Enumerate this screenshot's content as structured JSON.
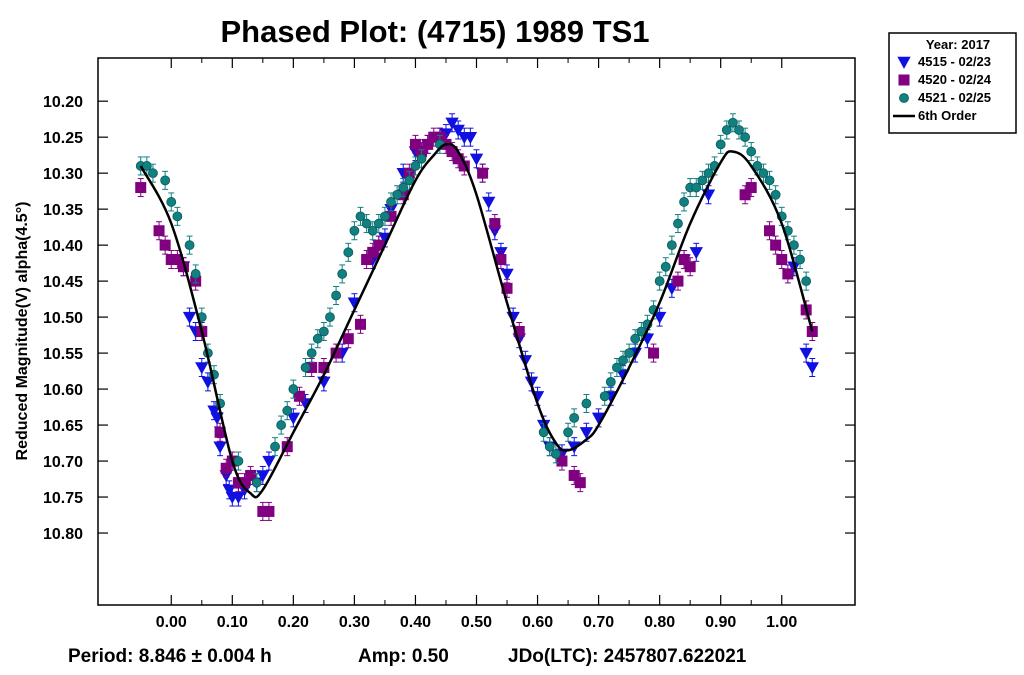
{
  "chart_data": {
    "type": "scatter",
    "title": "Phased Plot: (4715) 1989 TS1",
    "xlabel": "",
    "ylabel": "Reduced Magnitude(V) alpha(4.5°)",
    "xlim": [
      -0.12,
      1.12
    ],
    "ylim": [
      10.14,
      10.9
    ],
    "y_inverted": true,
    "x_ticks": [
      "0.00",
      "0.10",
      "0.20",
      "0.30",
      "0.40",
      "0.50",
      "0.60",
      "0.70",
      "0.80",
      "0.90",
      "1.00"
    ],
    "y_ticks": [
      "10.20",
      "10.25",
      "10.30",
      "10.35",
      "10.40",
      "10.45",
      "10.50",
      "10.55",
      "10.60",
      "10.65",
      "10.70",
      "10.75",
      "10.80"
    ],
    "legend": {
      "placement": "outside-top-right",
      "title": "Year: 2017",
      "entries": [
        {
          "label": "4515 - 02/23",
          "marker": "triangle-down",
          "color": "#1010e0"
        },
        {
          "label": "4520 - 02/24",
          "marker": "square",
          "color": "#800080"
        },
        {
          "label": "4521 - 02/25",
          "marker": "circle",
          "color": "#108080"
        },
        {
          "label": "6th Order",
          "marker": "line",
          "color": "#000000"
        }
      ]
    },
    "fit_curve": {
      "name": "6th Order",
      "x": [
        -0.05,
        0.0,
        0.05,
        0.1,
        0.13,
        0.15,
        0.2,
        0.25,
        0.3,
        0.35,
        0.4,
        0.43,
        0.45,
        0.47,
        0.5,
        0.55,
        0.6,
        0.63,
        0.65,
        0.68,
        0.7,
        0.75,
        0.8,
        0.85,
        0.9,
        0.92,
        0.95,
        1.0,
        1.05
      ],
      "y": [
        10.29,
        10.37,
        10.52,
        10.7,
        10.745,
        10.74,
        10.66,
        10.58,
        10.49,
        10.4,
        10.31,
        10.275,
        10.26,
        10.27,
        10.33,
        10.48,
        10.62,
        10.675,
        10.685,
        10.67,
        10.65,
        10.57,
        10.48,
        10.37,
        10.285,
        10.27,
        10.29,
        10.37,
        10.52
      ]
    },
    "series": [
      {
        "name": "4515 - 02/23",
        "x": [
          0.02,
          0.03,
          0.04,
          0.05,
          0.06,
          0.07,
          0.075,
          0.08,
          0.09,
          0.095,
          0.1,
          0.11,
          0.12,
          0.14,
          0.15,
          0.16,
          0.2,
          0.22,
          0.25,
          0.28,
          0.3,
          0.33,
          0.34,
          0.35,
          0.36,
          0.38,
          0.4,
          0.42,
          0.44,
          0.45,
          0.46,
          0.47,
          0.48,
          0.49,
          0.5,
          0.51,
          0.52,
          0.53,
          0.54,
          0.55,
          0.56,
          0.57,
          0.58,
          0.59,
          0.6,
          0.61,
          0.62,
          0.64,
          0.66,
          0.68,
          0.7,
          0.72,
          0.74,
          0.76,
          0.78,
          0.8,
          0.82,
          0.84,
          0.86,
          0.88,
          1.02,
          1.04,
          1.05
        ],
        "y": [
          10.43,
          10.5,
          10.52,
          10.57,
          10.59,
          10.63,
          10.64,
          10.68,
          10.72,
          10.74,
          10.75,
          10.75,
          10.74,
          10.73,
          10.72,
          10.7,
          10.64,
          10.62,
          10.59,
          10.55,
          10.48,
          10.42,
          10.4,
          10.39,
          10.35,
          10.3,
          10.27,
          10.26,
          10.25,
          10.245,
          10.23,
          10.24,
          10.25,
          10.25,
          10.28,
          10.3,
          10.34,
          10.38,
          10.41,
          10.44,
          10.5,
          10.53,
          10.56,
          10.59,
          10.61,
          10.65,
          10.68,
          10.69,
          10.68,
          10.66,
          10.64,
          10.61,
          10.58,
          10.55,
          10.53,
          10.5,
          10.46,
          10.42,
          10.41,
          10.33,
          10.43,
          10.55,
          10.57
        ]
      },
      {
        "name": "4520 - 02/24",
        "x": [
          -0.05,
          -0.02,
          -0.01,
          0.0,
          0.01,
          0.02,
          0.04,
          0.05,
          0.08,
          0.09,
          0.1,
          0.11,
          0.12,
          0.13,
          0.15,
          0.16,
          0.19,
          0.21,
          0.23,
          0.25,
          0.27,
          0.29,
          0.31,
          0.32,
          0.33,
          0.34,
          0.36,
          0.38,
          0.39,
          0.4,
          0.41,
          0.42,
          0.43,
          0.44,
          0.45,
          0.46,
          0.47,
          0.48,
          0.51,
          0.53,
          0.54,
          0.55,
          0.57,
          0.64,
          0.66,
          0.67,
          0.79,
          0.83,
          0.84,
          0.85,
          0.94,
          0.95,
          0.98,
          0.99,
          1.0,
          1.01,
          1.04,
          1.05
        ],
        "y": [
          10.32,
          10.38,
          10.4,
          10.42,
          10.42,
          10.43,
          10.45,
          10.52,
          10.66,
          10.71,
          10.7,
          10.73,
          10.73,
          10.72,
          10.77,
          10.77,
          10.68,
          10.61,
          10.57,
          10.57,
          10.55,
          10.53,
          10.51,
          10.42,
          10.41,
          10.4,
          10.36,
          10.33,
          10.3,
          10.26,
          10.27,
          10.26,
          10.25,
          10.25,
          10.26,
          10.27,
          10.28,
          10.29,
          10.3,
          10.37,
          10.42,
          10.46,
          10.52,
          10.7,
          10.72,
          10.73,
          10.55,
          10.45,
          10.42,
          10.43,
          10.33,
          10.32,
          10.38,
          10.4,
          10.42,
          10.44,
          10.49,
          10.52
        ]
      },
      {
        "name": "4521 - 02/25",
        "x": [
          -0.05,
          -0.04,
          -0.03,
          -0.01,
          0.0,
          0.01,
          0.03,
          0.04,
          0.05,
          0.06,
          0.07,
          0.08,
          0.11,
          0.14,
          0.17,
          0.18,
          0.19,
          0.2,
          0.22,
          0.23,
          0.24,
          0.25,
          0.26,
          0.27,
          0.28,
          0.29,
          0.3,
          0.31,
          0.32,
          0.33,
          0.34,
          0.35,
          0.36,
          0.37,
          0.38,
          0.39,
          0.4,
          0.41,
          0.44,
          0.61,
          0.62,
          0.63,
          0.65,
          0.66,
          0.68,
          0.71,
          0.72,
          0.73,
          0.74,
          0.75,
          0.76,
          0.77,
          0.78,
          0.79,
          0.8,
          0.81,
          0.82,
          0.83,
          0.84,
          0.85,
          0.86,
          0.87,
          0.88,
          0.89,
          0.9,
          0.91,
          0.92,
          0.93,
          0.94,
          0.95,
          0.96,
          0.97,
          0.98,
          0.99,
          1.0,
          1.01,
          1.02,
          1.03,
          1.04
        ],
        "y": [
          10.29,
          10.29,
          10.3,
          10.31,
          10.34,
          10.36,
          10.4,
          10.44,
          10.5,
          10.55,
          10.58,
          10.62,
          10.7,
          10.73,
          10.68,
          10.65,
          10.63,
          10.6,
          10.57,
          10.55,
          10.53,
          10.52,
          10.5,
          10.47,
          10.44,
          10.41,
          10.38,
          10.36,
          10.37,
          10.38,
          10.37,
          10.36,
          10.34,
          10.33,
          10.32,
          10.31,
          10.29,
          10.28,
          10.26,
          10.66,
          10.68,
          10.69,
          10.66,
          10.64,
          10.62,
          10.61,
          10.59,
          10.57,
          10.56,
          10.55,
          10.53,
          10.52,
          10.51,
          10.49,
          10.45,
          10.43,
          10.4,
          10.37,
          10.34,
          10.32,
          10.32,
          10.31,
          10.3,
          10.29,
          10.26,
          10.24,
          10.23,
          10.24,
          10.25,
          10.27,
          10.29,
          10.3,
          10.31,
          10.33,
          10.36,
          10.38,
          10.4,
          10.42,
          10.45
        ]
      }
    ]
  },
  "footer": {
    "period": "Period: 8.846 ± 0.004 h",
    "amp": "Amp: 0.50",
    "jdo": "JDo(LTC): 2457807.622021"
  }
}
